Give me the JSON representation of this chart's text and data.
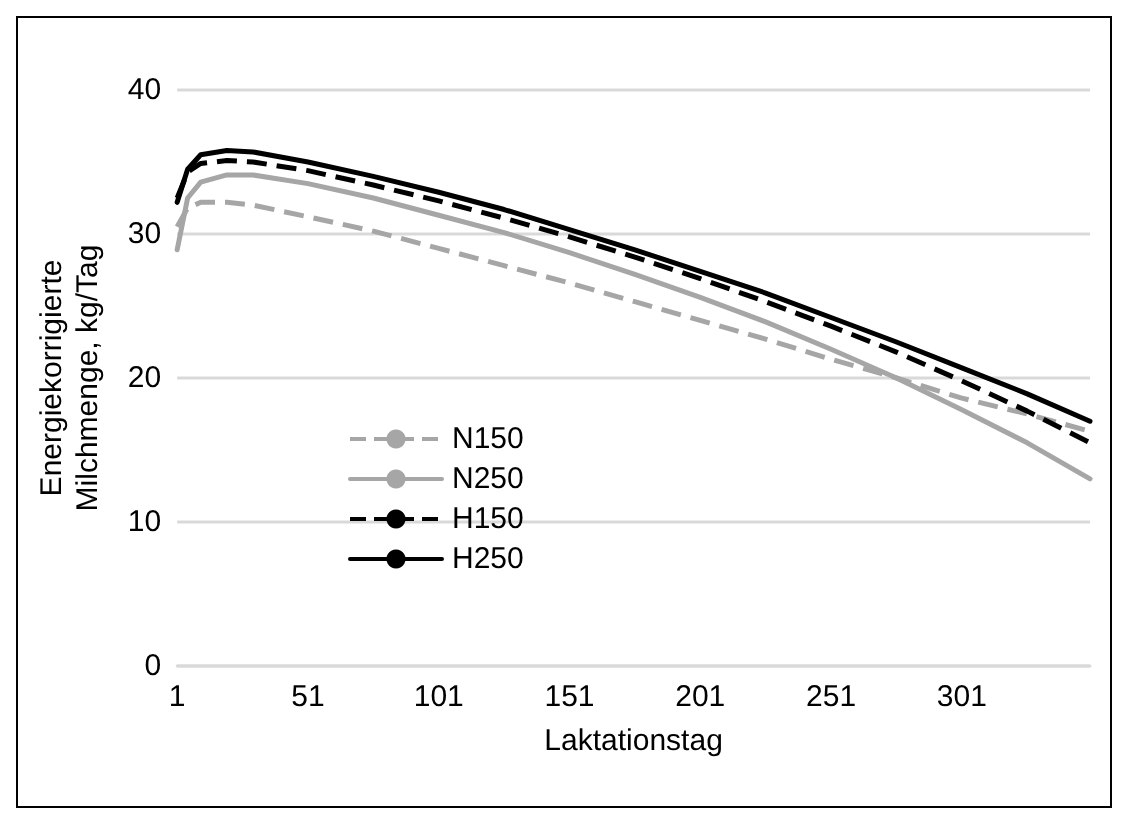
{
  "chart_data": {
    "type": "line",
    "xlabel": "Laktationstag",
    "ylabel": "Energiekorrigierte\nMilchmenge, kg/Tag",
    "xlim": [
      1,
      350
    ],
    "xticks": [
      1,
      51,
      101,
      151,
      201,
      251,
      301
    ],
    "ylim": [
      0,
      40
    ],
    "yticks": [
      0,
      10,
      20,
      30,
      40
    ],
    "grid": "y",
    "legend": "bottom left",
    "marker": "none",
    "x": [
      1,
      5,
      10,
      20,
      30,
      51,
      76,
      101,
      126,
      151,
      176,
      201,
      226,
      251,
      276,
      301,
      326,
      350
    ],
    "series": [
      {
        "name": "N150",
        "color": "#a6a6a6",
        "line_style": "dashed",
        "values": [
          30.5,
          31.8,
          32.2,
          32.2,
          32.0,
          31.2,
          30.2,
          29.0,
          27.8,
          26.6,
          25.3,
          24.0,
          22.7,
          21.3,
          20.0,
          18.6,
          17.5,
          16.3
        ]
      },
      {
        "name": "N250",
        "color": "#a6a6a6",
        "line_style": "solid",
        "values": [
          28.9,
          32.5,
          33.6,
          34.1,
          34.1,
          33.5,
          32.5,
          31.3,
          30.1,
          28.7,
          27.2,
          25.6,
          23.9,
          22.0,
          20.0,
          17.8,
          15.5,
          13.0
        ]
      },
      {
        "name": "H150",
        "color": "#000000",
        "line_style": "dashed",
        "values": [
          32.5,
          34.3,
          34.9,
          35.1,
          35.0,
          34.4,
          33.4,
          32.3,
          31.1,
          29.8,
          28.4,
          26.9,
          25.3,
          23.6,
          21.8,
          19.8,
          17.7,
          15.5
        ]
      },
      {
        "name": "H250",
        "color": "#000000",
        "line_style": "solid",
        "values": [
          32.2,
          34.5,
          35.5,
          35.8,
          35.7,
          35.0,
          34.0,
          32.9,
          31.7,
          30.3,
          28.9,
          27.4,
          25.9,
          24.2,
          22.5,
          20.7,
          18.9,
          17.0
        ]
      }
    ]
  }
}
